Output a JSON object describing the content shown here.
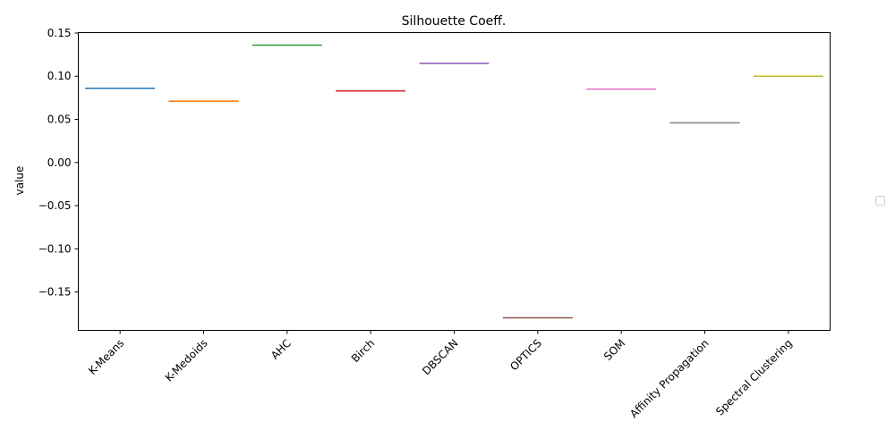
{
  "chart_data": {
    "type": "line",
    "title": "Silhouette Coeff.",
    "xlabel": "",
    "ylabel": "value",
    "categories": [
      "K-Means",
      "K-Medoids",
      "AHC",
      "Birch",
      "DBSCAN",
      "OPTICS",
      "SOM",
      "Affinity Propagation",
      "Spectral Clustering"
    ],
    "values": [
      0.086,
      0.071,
      0.136,
      0.083,
      0.115,
      -0.18,
      0.085,
      0.046,
      0.1
    ],
    "colors": [
      "#1f77b4",
      "#ff7f0e",
      "#2ca02c",
      "#d62728",
      "#9467bd",
      "#8c564b",
      "#e377c2",
      "#7f7f7f",
      "#bcbd22"
    ],
    "yticks": [
      0.15,
      0.1,
      0.05,
      0.0,
      -0.05,
      -0.1,
      -0.15
    ],
    "ytick_labels": [
      "0.15",
      "0.10",
      "0.05",
      "0.00",
      "−0.05",
      "−0.10",
      "−0.15"
    ],
    "ylim": [
      -0.1945,
      0.1505
    ],
    "grid": false,
    "legend": "right, empty"
  }
}
